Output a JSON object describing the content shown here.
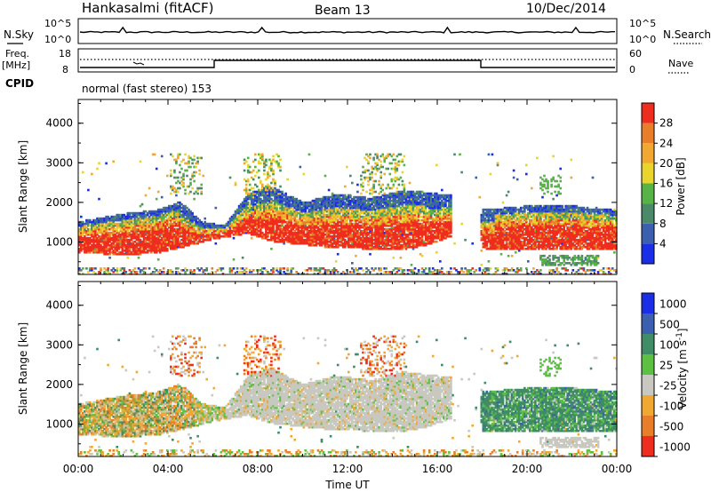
{
  "header": {
    "station": "Hankasalmi (fitACF)",
    "beam": "Beam 13",
    "date": "10/Dec/2014"
  },
  "noise_panel": {
    "left_label": "N.Sky",
    "right_label": "N.Search",
    "tick_top": "10^5",
    "tick_bottom": "10^0"
  },
  "freq_panel": {
    "left_label_line1": "Freq.",
    "left_label_line2": "[MHz]",
    "cpid_label": "CPID",
    "left_tick_top": "18",
    "left_tick_bottom": "8",
    "right_tick_top": "60",
    "right_tick_bottom": "0",
    "right_label": "Nave"
  },
  "cpid_text": "normal (fast stereo) 153",
  "chart_data": [
    {
      "type": "heatmap",
      "panel": "power",
      "ylabel": "Slant Range [km]",
      "yticks": [
        "1000",
        "2000",
        "3000",
        "4000"
      ],
      "colorbar_label": "Power [dB]",
      "colorbar_ticks": [
        "4",
        "8",
        "12",
        "16",
        "20",
        "24",
        "28"
      ],
      "colors": [
        "#1a2ee8",
        "#3c5fb0",
        "#4a8a68",
        "#57b345",
        "#e8d42c",
        "#f0a832",
        "#e87e2a",
        "#ee2d1f"
      ]
    },
    {
      "type": "heatmap",
      "panel": "velocity",
      "ylabel": "Slant Range [km]",
      "yticks": [
        "1000",
        "2000",
        "3000",
        "4000"
      ],
      "colorbar_label": "Velocity [m s^-1]",
      "colorbar_ticks": [
        "1000",
        "500",
        "100",
        "25",
        "-25",
        "-100",
        "-500",
        "-1000"
      ],
      "colors": [
        "#1a2ee8",
        "#3c5fb0",
        "#3f8c66",
        "#5cc043",
        "#c8c8c0",
        "#f0a832",
        "#e87e2a",
        "#ee2d1f"
      ]
    }
  ],
  "xaxis": {
    "ticks": [
      "00:00",
      "04:00",
      "08:00",
      "12:00",
      "16:00",
      "20:00",
      "00:00"
    ],
    "label": "Time UT"
  }
}
